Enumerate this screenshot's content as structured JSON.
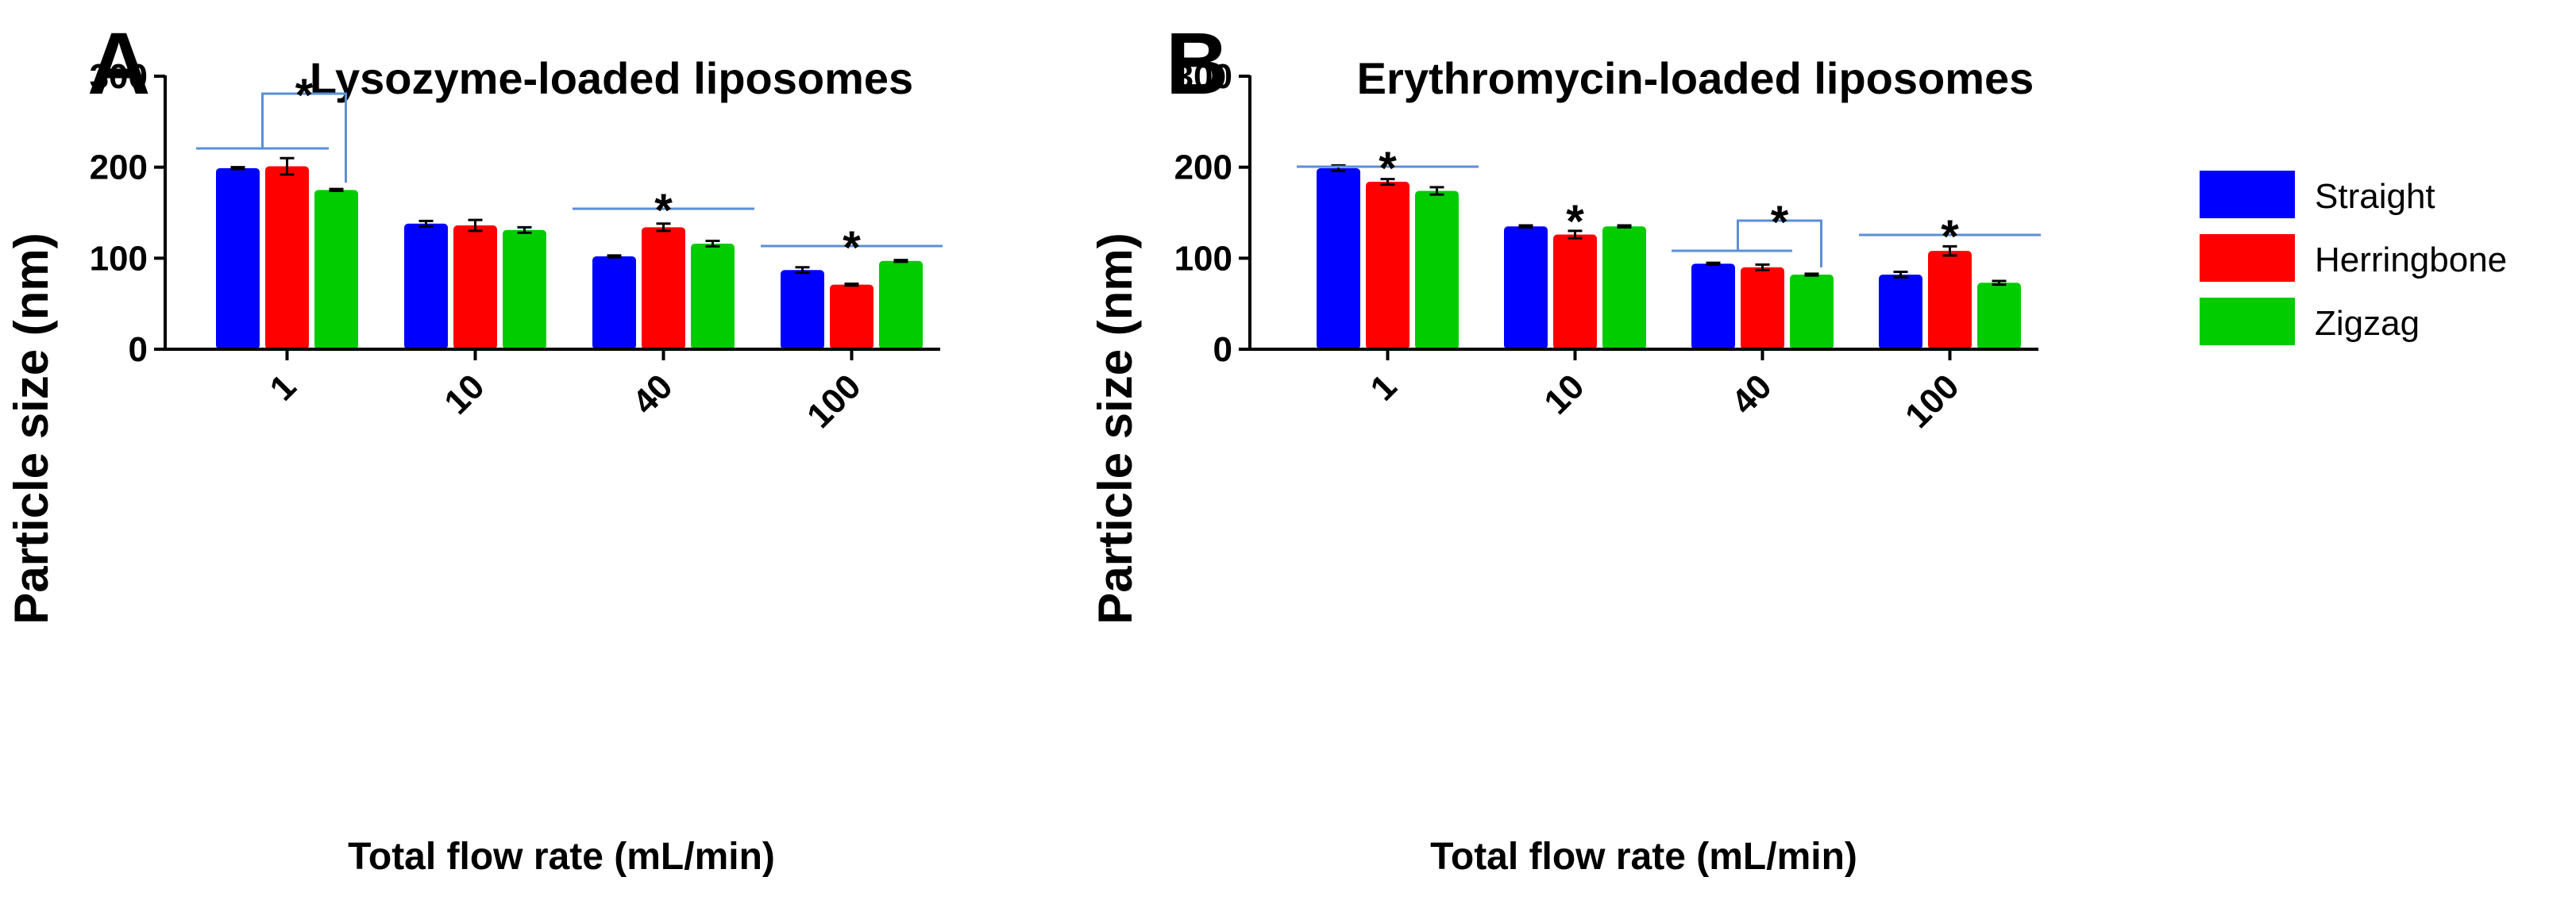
{
  "colors": {
    "Straight": "#0000ff",
    "Herringbone": "#ff0000",
    "Zigzag": "#00cc00",
    "bracket": "#5b8fd6",
    "axis": "#000000"
  },
  "legend": {
    "entries": [
      "Straight",
      "Herringbone",
      "Zigzag"
    ]
  },
  "chart_data": [
    {
      "panel": "A",
      "type": "bar",
      "title": "Lysozyme-loaded liposomes",
      "xlabel": "Total flow rate (mL/min)",
      "ylabel": "Particle size (nm)",
      "ylim": [
        0,
        300
      ],
      "yticks": [
        0,
        100,
        200,
        300
      ],
      "categories": [
        "1",
        "10",
        "40",
        "100"
      ],
      "series": [
        {
          "name": "Straight",
          "values": [
            199,
            138,
            102,
            87
          ],
          "errors": [
            1,
            3,
            1,
            3
          ]
        },
        {
          "name": "Herringbone",
          "values": [
            201,
            136,
            134,
            71
          ],
          "errors": [
            9,
            6,
            4,
            1
          ]
        },
        {
          "name": "Zigzag",
          "values": [
            175,
            131,
            116,
            97
          ],
          "errors": [
            1,
            3,
            3,
            1
          ]
        }
      ],
      "significance": [
        {
          "category": 0,
          "type": "bracket-group",
          "label": "*"
        },
        {
          "category": 2,
          "type": "line",
          "label": "*"
        },
        {
          "category": 3,
          "type": "line",
          "label": "*"
        }
      ]
    },
    {
      "panel": "B",
      "type": "bar",
      "title": "Erythromycin-loaded liposomes",
      "xlabel": "Total flow rate (mL/min)",
      "ylabel": "Particle size (nm)",
      "ylim": [
        0,
        300
      ],
      "yticks": [
        0,
        100,
        200,
        300
      ],
      "categories": [
        "1",
        "10",
        "40",
        "100"
      ],
      "series": [
        {
          "name": "Straight",
          "values": [
            199,
            135,
            94,
            82
          ],
          "errors": [
            3,
            1,
            1,
            3
          ]
        },
        {
          "name": "Herringbone",
          "values": [
            184,
            126,
            90,
            108
          ],
          "errors": [
            3,
            4,
            3,
            5
          ]
        },
        {
          "name": "Zigzag",
          "values": [
            174,
            135,
            82,
            73
          ],
          "errors": [
            4,
            1,
            1,
            2
          ]
        }
      ],
      "significance": [
        {
          "category": 0,
          "type": "line",
          "label": "*"
        },
        {
          "category": 1,
          "type": "star-only",
          "label": "*"
        },
        {
          "category": 2,
          "type": "bracket-group",
          "label": "*"
        },
        {
          "category": 3,
          "type": "line",
          "label": "*"
        }
      ]
    }
  ]
}
